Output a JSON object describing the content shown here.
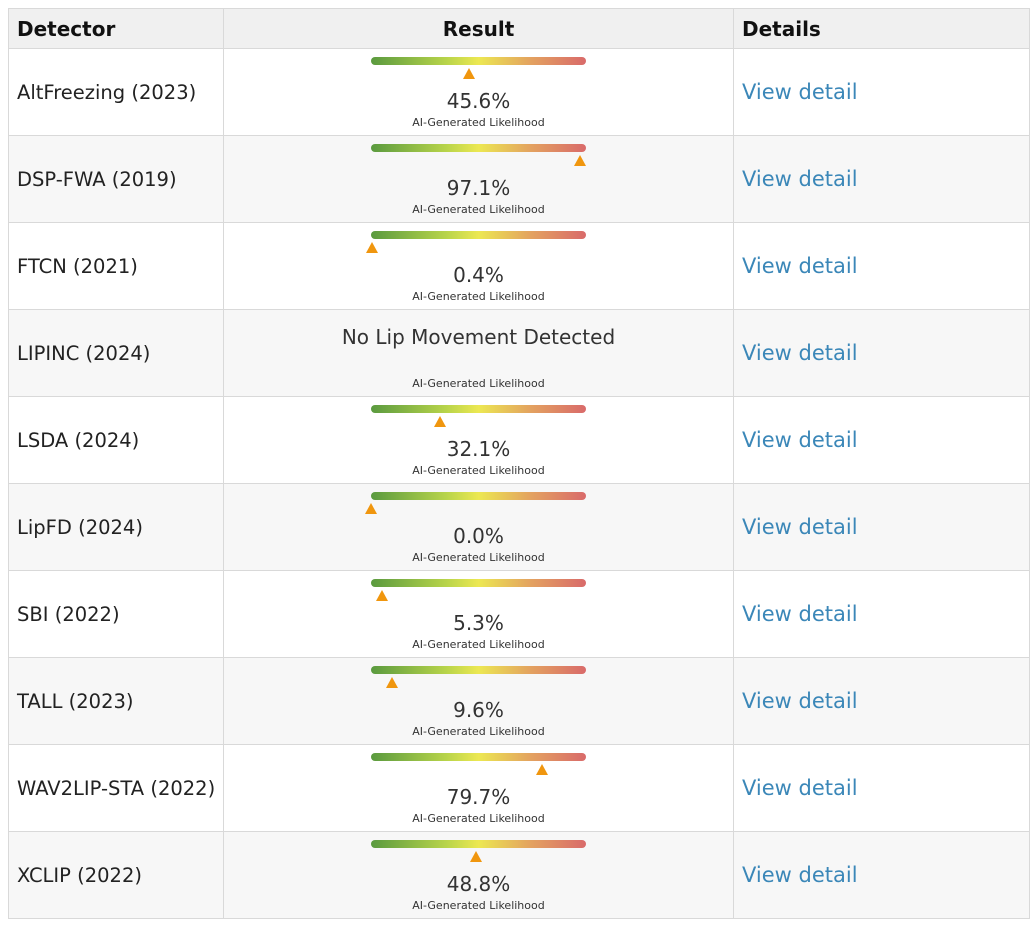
{
  "table": {
    "headers": {
      "detector": "Detector",
      "result": "Result",
      "details": "Details"
    },
    "caption": "AI-Generated Likelihood",
    "link_label": "View detail",
    "colors": {
      "marker": "#f0960e",
      "link": "#3b87b8",
      "gauge_start": "#5a9a3f",
      "gauge_mid": "#ece852",
      "gauge_end": "#d96a6a"
    },
    "rows": [
      {
        "name": "AltFreezing (2023)",
        "value_text": "45.6%",
        "likelihood": 0.456
      },
      {
        "name": "DSP-FWA (2019)",
        "value_text": "97.1%",
        "likelihood": 0.971
      },
      {
        "name": "FTCN (2021)",
        "value_text": "0.4%",
        "likelihood": 0.004
      },
      {
        "name": "LIPINC (2024)",
        "value_text": "No Lip Movement Detected",
        "likelihood": null
      },
      {
        "name": "LSDA (2024)",
        "value_text": "32.1%",
        "likelihood": 0.321
      },
      {
        "name": "LipFD (2024)",
        "value_text": "0.0%",
        "likelihood": 0.0
      },
      {
        "name": "SBI (2022)",
        "value_text": "5.3%",
        "likelihood": 0.053
      },
      {
        "name": "TALL (2023)",
        "value_text": "9.6%",
        "likelihood": 0.096
      },
      {
        "name": "WAV2LIP-STA (2022)",
        "value_text": "79.7%",
        "likelihood": 0.797
      },
      {
        "name": "XCLIP (2022)",
        "value_text": "48.8%",
        "likelihood": 0.488
      }
    ]
  }
}
